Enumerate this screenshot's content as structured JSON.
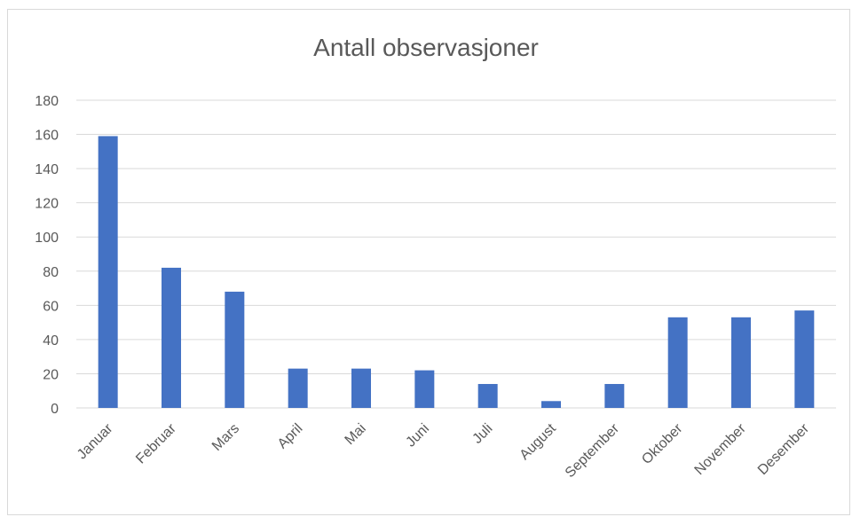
{
  "chart_data": {
    "type": "bar",
    "title": "Antall observasjoner",
    "categories": [
      "Januar",
      "Februar",
      "Mars",
      "April",
      "Mai",
      "Juni",
      "Juli",
      "August",
      "September",
      "Oktober",
      "November",
      "Desember"
    ],
    "series": [
      {
        "values": [
          159,
          82,
          68,
          23,
          23,
          22,
          14,
          4,
          14,
          53,
          53,
          57
        ]
      }
    ],
    "ylim": [
      0,
      180
    ],
    "yticks": [
      0,
      20,
      40,
      60,
      80,
      100,
      120,
      140,
      160,
      180
    ],
    "grid": true,
    "legend": "none",
    "bar_color": "#4472c4",
    "grid_color": "#d9d9d9",
    "text_color": "#595959"
  }
}
